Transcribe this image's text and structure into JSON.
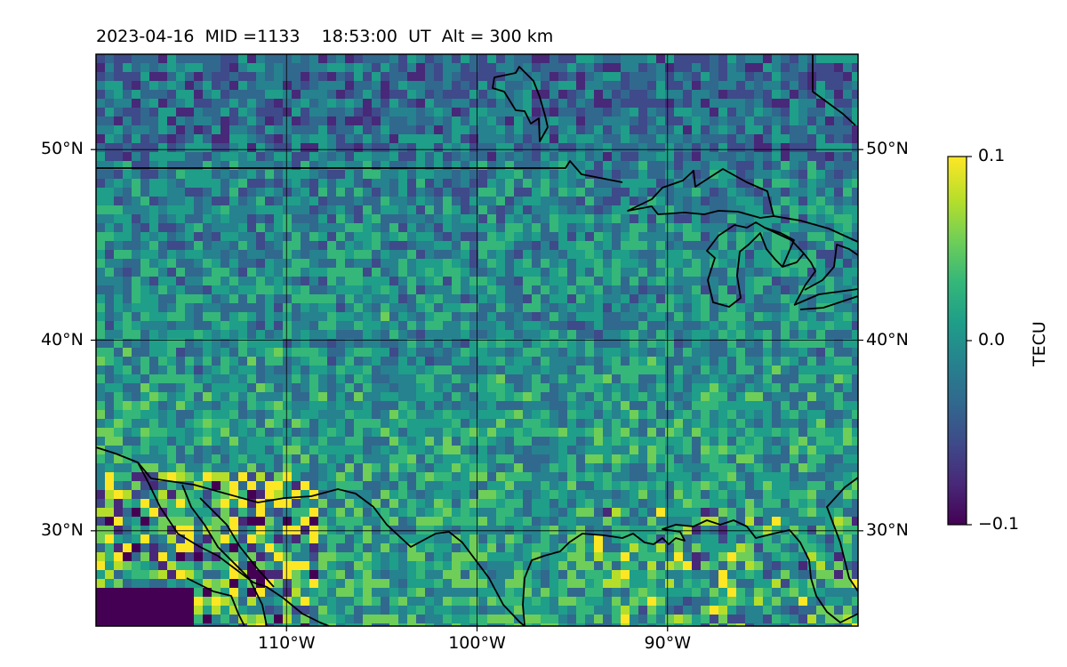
{
  "header": {
    "date": "2023-04-16",
    "mid": "MID =1133",
    "time": "18:53:00",
    "ut": "UT",
    "alt": "Alt = 300 km"
  },
  "map": {
    "projection": "plate-carree",
    "lon_range": [
      -120,
      -80
    ],
    "lat_range": [
      25,
      55
    ],
    "lon_ticks": [
      {
        "value": -110,
        "label": "110°W"
      },
      {
        "value": -100,
        "label": "100°W"
      },
      {
        "value": -90,
        "label": "90°W"
      }
    ],
    "lat_ticks": [
      {
        "value": 30,
        "label": "30°N"
      },
      {
        "value": 40,
        "label": "40°N"
      },
      {
        "value": 50,
        "label": "50°N"
      }
    ],
    "gridlines": true,
    "coastlines": true,
    "borders": true
  },
  "colorbar": {
    "label": "TECU",
    "vmin": -0.1,
    "vmax": 0.1,
    "colormap": "viridis",
    "ticks": [
      {
        "value": 0.1,
        "label": "0.1"
      },
      {
        "value": 0.0,
        "label": "0.0"
      },
      {
        "value": -0.1,
        "label": "−0.1"
      }
    ],
    "colors": [
      "#440154",
      "#482878",
      "#3e4a89",
      "#31688e",
      "#26828e",
      "#1f9e89",
      "#35b779",
      "#6ece58",
      "#b5de2b",
      "#fde725"
    ]
  }
}
